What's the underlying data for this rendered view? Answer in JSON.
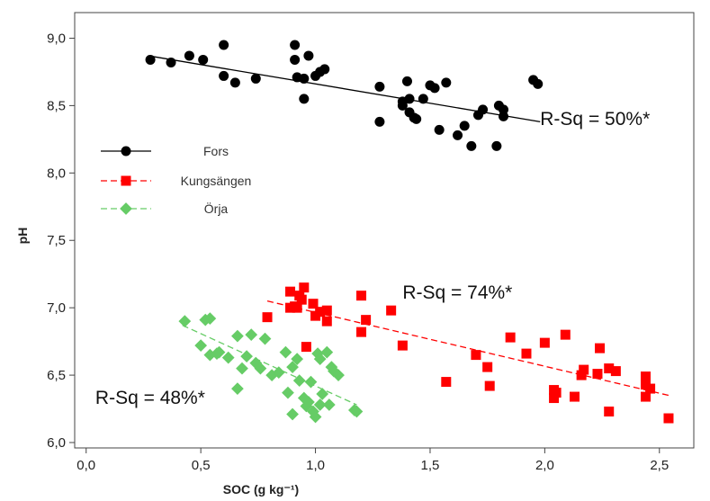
{
  "chart_data": {
    "type": "scatter",
    "title": "",
    "xlabel": "SOC (g kg⁻¹)",
    "ylabel": "pH",
    "xlim": [
      -0.05,
      2.65
    ],
    "ylim": [
      5.96,
      9.19
    ],
    "x_ticks": [
      0.0,
      0.5,
      1.0,
      1.5,
      2.0,
      2.5
    ],
    "x_tick_labels": [
      "0,0",
      "0,5",
      "1,0",
      "1,5",
      "2,0",
      "2,5"
    ],
    "y_ticks": [
      6.0,
      6.5,
      7.0,
      7.5,
      8.0,
      8.5,
      9.0
    ],
    "y_tick_labels": [
      "6,0",
      "6,5",
      "7,0",
      "7,5",
      "8,0",
      "8,5",
      "9,0"
    ],
    "grid": false,
    "legend_position": "left",
    "series": [
      {
        "name": "Fors",
        "color": "#000000",
        "marker": "circle",
        "line_style": "solid",
        "fit": {
          "x0": 0.27,
          "y0": 8.87,
          "x1": 1.98,
          "y1": 8.38
        },
        "points": [
          [
            0.28,
            8.84
          ],
          [
            0.37,
            8.82
          ],
          [
            0.45,
            8.87
          ],
          [
            0.51,
            8.84
          ],
          [
            0.6,
            8.95
          ],
          [
            0.6,
            8.72
          ],
          [
            0.65,
            8.67
          ],
          [
            0.74,
            8.7
          ],
          [
            0.91,
            8.95
          ],
          [
            0.91,
            8.84
          ],
          [
            0.92,
            8.71
          ],
          [
            0.95,
            8.7
          ],
          [
            0.95,
            8.55
          ],
          [
            0.97,
            8.87
          ],
          [
            1.0,
            8.72
          ],
          [
            1.02,
            8.75
          ],
          [
            1.04,
            8.77
          ],
          [
            1.28,
            8.64
          ],
          [
            1.28,
            8.38
          ],
          [
            1.38,
            8.53
          ],
          [
            1.38,
            8.5
          ],
          [
            1.4,
            8.68
          ],
          [
            1.41,
            8.55
          ],
          [
            1.41,
            8.45
          ],
          [
            1.43,
            8.41
          ],
          [
            1.44,
            8.4
          ],
          [
            1.47,
            8.55
          ],
          [
            1.5,
            8.65
          ],
          [
            1.52,
            8.63
          ],
          [
            1.54,
            8.32
          ],
          [
            1.57,
            8.67
          ],
          [
            1.62,
            8.28
          ],
          [
            1.65,
            8.35
          ],
          [
            1.68,
            8.2
          ],
          [
            1.71,
            8.43
          ],
          [
            1.73,
            8.47
          ],
          [
            1.79,
            8.2
          ],
          [
            1.8,
            8.5
          ],
          [
            1.82,
            8.47
          ],
          [
            1.82,
            8.42
          ],
          [
            1.95,
            8.69
          ],
          [
            1.97,
            8.66
          ]
        ]
      },
      {
        "name": "Kungsängen",
        "color": "#ff0000",
        "marker": "square",
        "line_style": "dashed",
        "fit": {
          "x0": 0.79,
          "y0": 7.05,
          "x1": 2.54,
          "y1": 6.35
        },
        "points": [
          [
            0.79,
            6.93
          ],
          [
            0.89,
            7.0
          ],
          [
            0.89,
            7.12
          ],
          [
            0.91,
            7.01
          ],
          [
            0.92,
            7.0
          ],
          [
            0.93,
            7.09
          ],
          [
            0.94,
            7.06
          ],
          [
            0.95,
            7.15
          ],
          [
            0.96,
            6.71
          ],
          [
            0.99,
            7.03
          ],
          [
            1.0,
            6.94
          ],
          [
            1.02,
            6.97
          ],
          [
            1.05,
            6.9
          ],
          [
            1.05,
            6.98
          ],
          [
            1.2,
            7.09
          ],
          [
            1.2,
            6.82
          ],
          [
            1.22,
            6.91
          ],
          [
            1.33,
            6.98
          ],
          [
            1.38,
            6.72
          ],
          [
            1.57,
            6.45
          ],
          [
            1.7,
            6.65
          ],
          [
            1.75,
            6.56
          ],
          [
            1.76,
            6.42
          ],
          [
            1.85,
            6.78
          ],
          [
            1.92,
            6.66
          ],
          [
            2.0,
            6.74
          ],
          [
            2.04,
            6.39
          ],
          [
            2.04,
            6.33
          ],
          [
            2.05,
            6.37
          ],
          [
            2.09,
            6.8
          ],
          [
            2.13,
            6.34
          ],
          [
            2.16,
            6.5
          ],
          [
            2.17,
            6.54
          ],
          [
            2.23,
            6.51
          ],
          [
            2.24,
            6.7
          ],
          [
            2.28,
            6.55
          ],
          [
            2.28,
            6.23
          ],
          [
            2.31,
            6.53
          ],
          [
            2.44,
            6.49
          ],
          [
            2.44,
            6.34
          ],
          [
            2.44,
            6.43
          ],
          [
            2.46,
            6.4
          ],
          [
            2.54,
            6.18
          ]
        ]
      },
      {
        "name": "Örja",
        "color": "#66cc66",
        "marker": "diamond",
        "line_style": "dashed",
        "fit": {
          "x0": 0.42,
          "y0": 6.87,
          "x1": 1.18,
          "y1": 6.28
        },
        "points": [
          [
            0.43,
            6.9
          ],
          [
            0.5,
            6.72
          ],
          [
            0.52,
            6.91
          ],
          [
            0.54,
            6.92
          ],
          [
            0.54,
            6.65
          ],
          [
            0.57,
            6.66
          ],
          [
            0.58,
            6.67
          ],
          [
            0.62,
            6.63
          ],
          [
            0.66,
            6.79
          ],
          [
            0.66,
            6.4
          ],
          [
            0.68,
            6.55
          ],
          [
            0.7,
            6.64
          ],
          [
            0.72,
            6.8
          ],
          [
            0.74,
            6.59
          ],
          [
            0.76,
            6.55
          ],
          [
            0.78,
            6.77
          ],
          [
            0.81,
            6.5
          ],
          [
            0.84,
            6.52
          ],
          [
            0.87,
            6.67
          ],
          [
            0.88,
            6.37
          ],
          [
            0.9,
            6.56
          ],
          [
            0.9,
            6.21
          ],
          [
            0.92,
            6.62
          ],
          [
            0.93,
            6.46
          ],
          [
            0.95,
            6.33
          ],
          [
            0.96,
            6.27
          ],
          [
            0.97,
            6.3
          ],
          [
            0.98,
            6.45
          ],
          [
            0.99,
            6.23
          ],
          [
            1.0,
            6.19
          ],
          [
            1.01,
            6.66
          ],
          [
            1.02,
            6.28
          ],
          [
            1.02,
            6.62
          ],
          [
            1.03,
            6.36
          ],
          [
            1.05,
            6.67
          ],
          [
            1.06,
            6.28
          ],
          [
            1.07,
            6.56
          ],
          [
            1.08,
            6.53
          ],
          [
            1.1,
            6.5
          ],
          [
            1.17,
            6.24
          ],
          [
            1.18,
            6.23
          ]
        ]
      }
    ],
    "annotations": [
      {
        "text": "R-Sq = 50%*",
        "x": 1.98,
        "y": 8.41
      },
      {
        "text": "R-Sq = 74%*",
        "x": 1.38,
        "y": 7.12
      },
      {
        "text": "R-Sq = 48%*",
        "x": 0.04,
        "y": 6.34
      }
    ]
  }
}
